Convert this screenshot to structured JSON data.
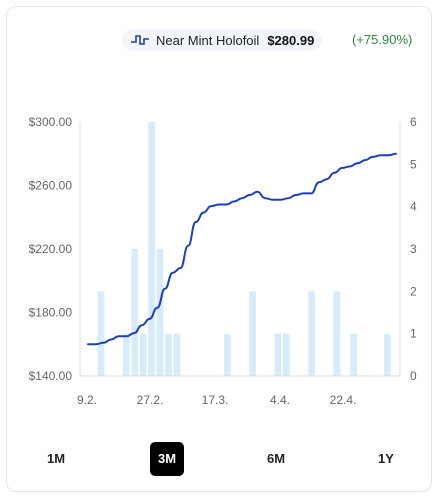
{
  "legend": {
    "series_name": "Near Mint Holofoil",
    "price": "$280.99",
    "change": "(+75.90%)",
    "line_color": "#1c3fbf",
    "bar_color": "#d6ecfb"
  },
  "ranges": {
    "items": [
      "1M",
      "3M",
      "6M",
      "1Y"
    ],
    "selected": "3M"
  },
  "chart_data": {
    "type": "line+bar",
    "x_tick_labels": [
      "9.2.",
      "27.2.",
      "17.3.",
      "4.4.",
      "22.4."
    ],
    "y_left": {
      "ticks": [
        "$300.00",
        "$260.00",
        "$220.00",
        "$180.00",
        "$140.00"
      ],
      "ylim": [
        140,
        300
      ]
    },
    "y_right": {
      "ticks": [
        "6",
        "5",
        "4",
        "3",
        "2",
        "1",
        "0"
      ],
      "ylim": [
        0,
        6
      ]
    },
    "price_series": {
      "name": "Near Mint Holofoil",
      "values": [
        160,
        160,
        161,
        163,
        165,
        165,
        167,
        172,
        176,
        183,
        195,
        205,
        208,
        222,
        237,
        243,
        247,
        248,
        248,
        250,
        252,
        254,
        256,
        252,
        251,
        251,
        252,
        254,
        255,
        255,
        262,
        264,
        268,
        271,
        272,
        274,
        276,
        278,
        279,
        279,
        280
      ]
    },
    "sales_volume": {
      "values": [
        0,
        0,
        2,
        0,
        0,
        1,
        3,
        1,
        6,
        3,
        1,
        1,
        0,
        0,
        0,
        0,
        0,
        1,
        0,
        0,
        2,
        0,
        0,
        1,
        1,
        0,
        0,
        2,
        0,
        0,
        2,
        0,
        1,
        0,
        0,
        0,
        1,
        0
      ]
    },
    "grid": false
  }
}
